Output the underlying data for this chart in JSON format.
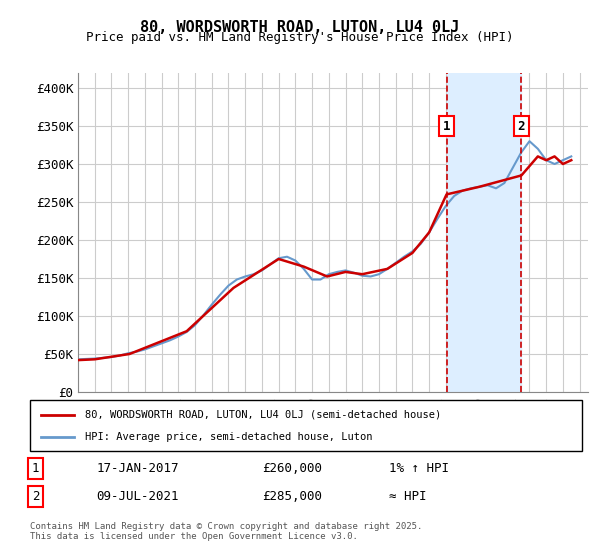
{
  "title": "80, WORDSWORTH ROAD, LUTON, LU4 0LJ",
  "subtitle": "Price paid vs. HM Land Registry's House Price Index (HPI)",
  "background_color": "#ffffff",
  "plot_bg_color": "#ffffff",
  "grid_color": "#cccccc",
  "ylabel_ticks": [
    "£0",
    "£50K",
    "£100K",
    "£150K",
    "£200K",
    "£250K",
    "£300K",
    "£350K",
    "£400K"
  ],
  "ytick_values": [
    0,
    50000,
    100000,
    150000,
    200000,
    250000,
    300000,
    350000,
    400000
  ],
  "ylim": [
    0,
    420000
  ],
  "xlim_start": 1995,
  "xlim_end": 2025.5,
  "hpi_color": "#6699cc",
  "price_color": "#cc0000",
  "annotation_bg": "#ddeeff",
  "annotation_border": "#cc0000",
  "marker1_date": 2017.04,
  "marker2_date": 2021.52,
  "marker1_price": 260000,
  "marker2_price": 285000,
  "legend_label1": "80, WORDSWORTH ROAD, LUTON, LU4 0LJ (semi-detached house)",
  "legend_label2": "HPI: Average price, semi-detached house, Luton",
  "note1_label": "1",
  "note1_date": "17-JAN-2017",
  "note1_price": "£260,000",
  "note1_hpi": "1% ↑ HPI",
  "note2_label": "2",
  "note2_date": "09-JUL-2021",
  "note2_price": "£285,000",
  "note2_hpi": "≈ HPI",
  "footer": "Contains HM Land Registry data © Crown copyright and database right 2025.\nThis data is licensed under the Open Government Licence v3.0.",
  "hpi_data_x": [
    1995,
    1995.5,
    1996,
    1996.5,
    1997,
    1997.5,
    1998,
    1998.5,
    1999,
    1999.5,
    2000,
    2000.5,
    2001,
    2001.5,
    2002,
    2002.5,
    2003,
    2003.5,
    2004,
    2004.5,
    2005,
    2005.5,
    2006,
    2006.5,
    2007,
    2007.5,
    2008,
    2008.5,
    2009,
    2009.5,
    2010,
    2010.5,
    2011,
    2011.5,
    2012,
    2012.5,
    2013,
    2013.5,
    2014,
    2014.5,
    2015,
    2015.5,
    2016,
    2016.5,
    2017,
    2017.5,
    2018,
    2018.5,
    2019,
    2019.5,
    2020,
    2020.5,
    2021,
    2021.5,
    2022,
    2022.5,
    2023,
    2023.5,
    2024,
    2024.5
  ],
  "hpi_data_y": [
    43000,
    43500,
    44000,
    45000,
    46000,
    48000,
    51000,
    53000,
    56000,
    60000,
    64000,
    68000,
    73000,
    79000,
    88000,
    101000,
    115000,
    128000,
    140000,
    148000,
    152000,
    155000,
    160000,
    168000,
    176000,
    178000,
    173000,
    162000,
    148000,
    148000,
    155000,
    158000,
    160000,
    157000,
    153000,
    152000,
    155000,
    162000,
    170000,
    178000,
    185000,
    195000,
    210000,
    228000,
    245000,
    258000,
    265000,
    268000,
    270000,
    272000,
    268000,
    275000,
    295000,
    315000,
    330000,
    320000,
    305000,
    300000,
    305000,
    310000
  ],
  "price_data_x": [
    1995.04,
    1996.0,
    1998.08,
    2001.5,
    2004.3,
    2007.0,
    2008.5,
    2009.9,
    2011.0,
    2012.0,
    2013.5,
    2015.0,
    2016.0,
    2017.04,
    2019.0,
    2021.52,
    2022.5,
    2023.0,
    2023.5,
    2024.0,
    2024.5
  ],
  "price_data_y": [
    42000,
    43000,
    50000,
    80000,
    137000,
    175000,
    165000,
    152000,
    158000,
    155000,
    162000,
    183000,
    210000,
    260000,
    270000,
    285000,
    310000,
    305000,
    310000,
    300000,
    305000
  ]
}
